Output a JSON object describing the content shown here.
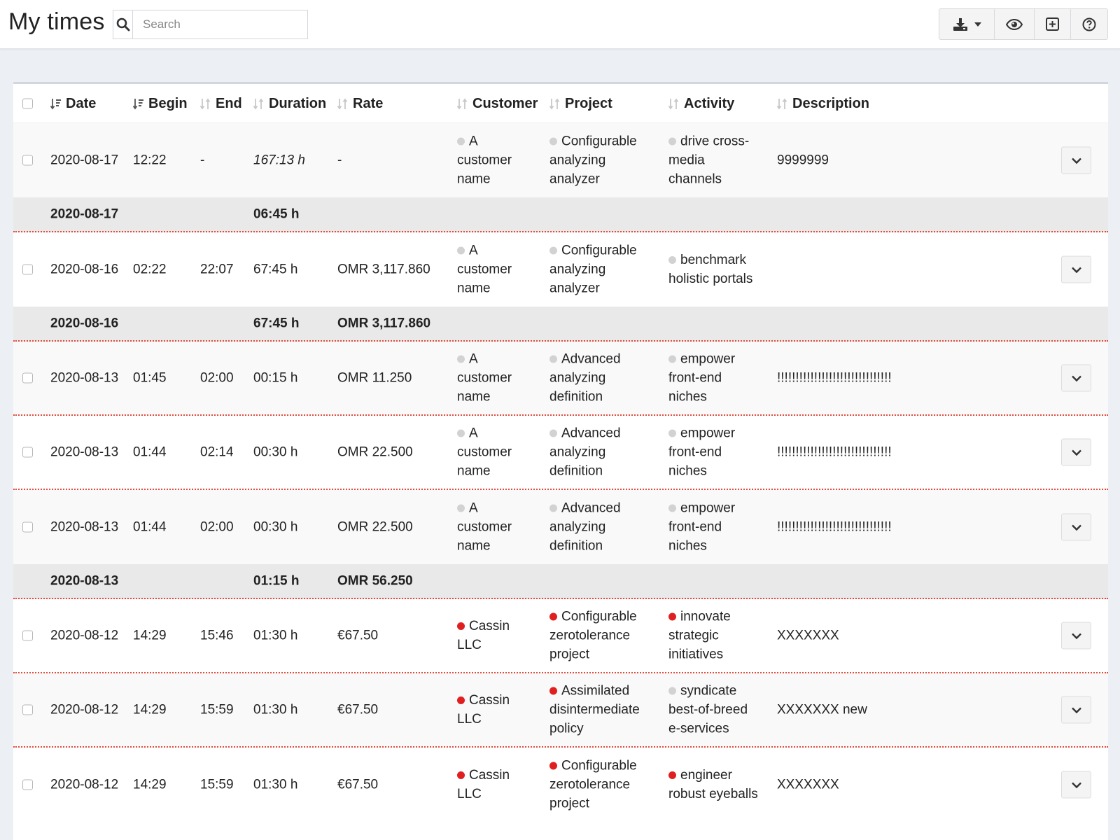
{
  "header": {
    "title": "My times",
    "search_placeholder": "Search"
  },
  "toolbar": {
    "icons": [
      "download-icon",
      "caret-down-icon",
      "eye-icon",
      "plus-square-icon",
      "question-circle-icon"
    ]
  },
  "table": {
    "columns": [
      "Date",
      "Begin",
      "End",
      "Duration",
      "Rate",
      "Customer",
      "Project",
      "Activity",
      "Description"
    ],
    "rows": [
      {
        "type": "entry",
        "date": "2020-08-17",
        "begin": "12:22",
        "end": "-",
        "duration": "167:13 h",
        "running": true,
        "rate": "-",
        "customer": [
          "A",
          "customer",
          "name"
        ],
        "customer_color": "#d2d2d2",
        "project": [
          "Configurable",
          "analyzing",
          "analyzer"
        ],
        "project_color": "#d2d2d2",
        "activity": [
          "drive cross-",
          "media",
          "channels"
        ],
        "activity_color": "#d2d2d2",
        "description": "9999999"
      },
      {
        "type": "summary",
        "date": "2020-08-17",
        "duration": "06:45 h",
        "rate": ""
      },
      {
        "type": "entry",
        "date": "2020-08-16",
        "begin": "02:22",
        "end": "22:07",
        "duration": "67:45 h",
        "rate": "OMR 3,117.860",
        "customer": [
          "A",
          "customer",
          "name"
        ],
        "customer_color": "#d2d2d2",
        "project": [
          "Configurable",
          "analyzing",
          "analyzer"
        ],
        "project_color": "#d2d2d2",
        "activity": [
          "benchmark",
          "holistic portals"
        ],
        "activity_color": "#d2d2d2",
        "description": ""
      },
      {
        "type": "summary",
        "date": "2020-08-16",
        "duration": "67:45 h",
        "rate": "OMR 3,117.860"
      },
      {
        "type": "entry",
        "date": "2020-08-13",
        "begin": "01:45",
        "end": "02:00",
        "duration": "00:15 h",
        "rate": "OMR 11.250",
        "customer": [
          "A",
          "customer",
          "name"
        ],
        "customer_color": "#d2d2d2",
        "project": [
          "Advanced",
          "analyzing",
          "definition"
        ],
        "project_color": "#d2d2d2",
        "activity": [
          "empower",
          "front-end",
          "niches"
        ],
        "activity_color": "#d2d2d2",
        "description": "!!!!!!!!!!!!!!!!!!!!!!!!!!!!!!!"
      },
      {
        "type": "entry",
        "date": "2020-08-13",
        "begin": "01:44",
        "end": "02:14",
        "duration": "00:30 h",
        "rate": "OMR 22.500",
        "customer": [
          "A",
          "customer",
          "name"
        ],
        "customer_color": "#d2d2d2",
        "project": [
          "Advanced",
          "analyzing",
          "definition"
        ],
        "project_color": "#d2d2d2",
        "activity": [
          "empower",
          "front-end",
          "niches"
        ],
        "activity_color": "#d2d2d2",
        "description": "!!!!!!!!!!!!!!!!!!!!!!!!!!!!!!!"
      },
      {
        "type": "entry",
        "date": "2020-08-13",
        "begin": "01:44",
        "end": "02:00",
        "duration": "00:30 h",
        "rate": "OMR 22.500",
        "customer": [
          "A",
          "customer",
          "name"
        ],
        "customer_color": "#d2d2d2",
        "project": [
          "Advanced",
          "analyzing",
          "definition"
        ],
        "project_color": "#d2d2d2",
        "activity": [
          "empower",
          "front-end",
          "niches"
        ],
        "activity_color": "#d2d2d2",
        "description": "!!!!!!!!!!!!!!!!!!!!!!!!!!!!!!!"
      },
      {
        "type": "summary",
        "date": "2020-08-13",
        "duration": "01:15 h",
        "rate": "OMR 56.250"
      },
      {
        "type": "entry",
        "date": "2020-08-12",
        "begin": "14:29",
        "end": "15:46",
        "duration": "01:30 h",
        "rate": "€67.50",
        "customer": [
          "Cassin",
          "LLC"
        ],
        "customer_color": "#e02020",
        "project": [
          "Configurable",
          "zerotolerance",
          "project"
        ],
        "project_color": "#e02020",
        "activity": [
          "innovate",
          "strategic",
          "initiatives"
        ],
        "activity_color": "#e02020",
        "description": "XXXXXXX"
      },
      {
        "type": "entry",
        "date": "2020-08-12",
        "begin": "14:29",
        "end": "15:59",
        "duration": "01:30 h",
        "rate": "€67.50",
        "customer": [
          "Cassin",
          "LLC"
        ],
        "customer_color": "#e02020",
        "project": [
          "Assimilated",
          "disintermediate",
          "policy"
        ],
        "project_color": "#e02020",
        "activity": [
          "syndicate",
          "best-of-breed",
          "e-services"
        ],
        "activity_color": "#d2d2d2",
        "description": "XXXXXXX new"
      },
      {
        "type": "entry",
        "date": "2020-08-12",
        "begin": "14:29",
        "end": "15:59",
        "duration": "01:30 h",
        "rate": "€67.50",
        "customer": [
          "Cassin",
          "LLC"
        ],
        "customer_color": "#e02020",
        "project": [
          "Configurable",
          "zerotolerance",
          "project"
        ],
        "project_color": "#e02020",
        "activity": [
          "engineer",
          "robust eyeballs"
        ],
        "activity_color": "#e02020",
        "description": "XXXXXXX"
      }
    ]
  }
}
